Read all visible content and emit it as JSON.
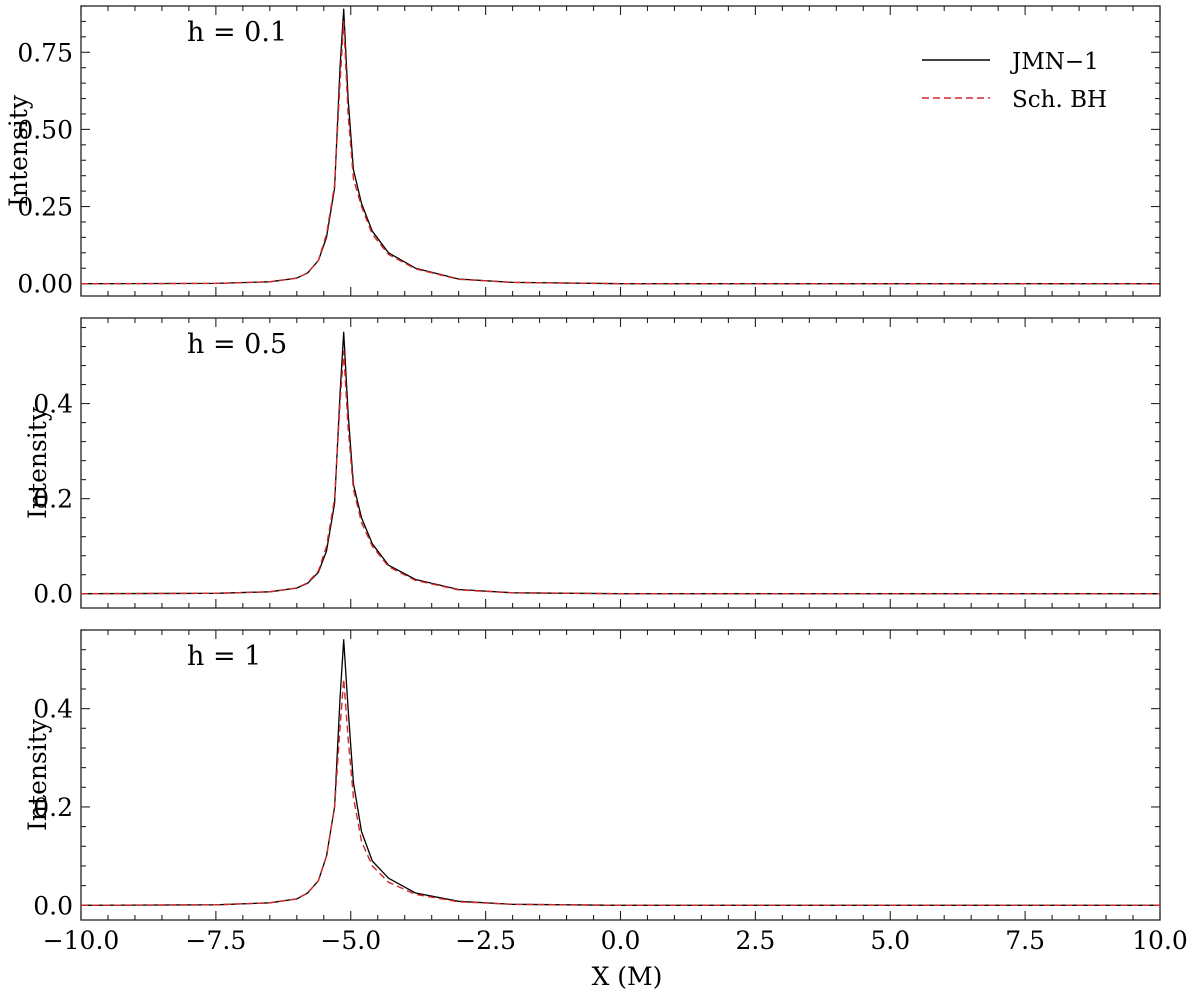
{
  "chart_data": {
    "type": "line",
    "xlabel": "X (M)",
    "xlim": [
      -10,
      10
    ],
    "x_ticks": [
      -10,
      -7.5,
      -5,
      -2.5,
      0,
      2.5,
      5,
      7.5,
      10
    ],
    "x_tick_labels": [
      "−10.0",
      "−7.5",
      "−5.0",
      "−2.5",
      "0.0",
      "2.5",
      "5.0",
      "7.5",
      "10.0"
    ],
    "legend": {
      "placement": "top-right",
      "entries": [
        {
          "name": "JMN−1",
          "color": "#000000",
          "dash": "solid"
        },
        {
          "name": "Sch. BH",
          "color": "#d62728",
          "dash": "dashed"
        }
      ]
    },
    "panels": [
      {
        "label": "h = 0.1",
        "ylabel": "Intensity",
        "ylim": [
          -0.04,
          0.9
        ],
        "y_ticks": [
          0,
          0.25,
          0.5,
          0.75
        ],
        "y_tick_labels": [
          "0.00",
          "0.25",
          "0.50",
          "0.75"
        ],
        "series": [
          {
            "name": "JMN−1",
            "x": [
              -10,
              -7.5,
              -6.5,
              -6.0,
              -5.8,
              -5.6,
              -5.45,
              -5.3,
              -5.2,
              -5.13,
              -5.05,
              -4.95,
              -4.8,
              -4.6,
              -4.3,
              -3.8,
              -3.0,
              -2.0,
              0,
              10
            ],
            "y": [
              0,
              0.001,
              0.006,
              0.018,
              0.035,
              0.075,
              0.15,
              0.31,
              0.7,
              0.89,
              0.6,
              0.37,
              0.26,
              0.17,
              0.1,
              0.05,
              0.015,
              0.004,
              0,
              0
            ]
          },
          {
            "name": "Sch. BH",
            "x": [
              -10,
              -7.5,
              -6.5,
              -6.0,
              -5.8,
              -5.6,
              -5.45,
              -5.3,
              -5.2,
              -5.13,
              -5.05,
              -4.95,
              -4.8,
              -4.6,
              -4.3,
              -3.8,
              -3.0,
              -2.0,
              0,
              10
            ],
            "y": [
              0,
              0.001,
              0.006,
              0.018,
              0.035,
              0.075,
              0.16,
              0.32,
              0.65,
              0.85,
              0.55,
              0.34,
              0.25,
              0.16,
              0.095,
              0.048,
              0.014,
              0.004,
              0,
              0
            ]
          }
        ]
      },
      {
        "label": "h = 0.5",
        "ylabel": "Intensity",
        "ylim": [
          -0.03,
          0.58
        ],
        "y_ticks": [
          0,
          0.2,
          0.4
        ],
        "y_tick_labels": [
          "0.0",
          "0.2",
          "0.4"
        ],
        "series": [
          {
            "name": "JMN−1",
            "x": [
              -10,
              -7.5,
              -6.5,
              -6.0,
              -5.8,
              -5.6,
              -5.45,
              -5.3,
              -5.2,
              -5.13,
              -5.05,
              -4.95,
              -4.8,
              -4.6,
              -4.3,
              -3.8,
              -3.0,
              -2.0,
              0,
              10
            ],
            "y": [
              0,
              0.001,
              0.004,
              0.012,
              0.022,
              0.045,
              0.09,
              0.19,
              0.42,
              0.55,
              0.38,
              0.23,
              0.16,
              0.105,
              0.06,
              0.03,
              0.009,
              0.002,
              0,
              0
            ]
          },
          {
            "name": "Sch. BH",
            "x": [
              -10,
              -7.5,
              -6.5,
              -6.0,
              -5.8,
              -5.6,
              -5.45,
              -5.3,
              -5.2,
              -5.13,
              -5.05,
              -4.95,
              -4.8,
              -4.6,
              -4.3,
              -3.8,
              -3.0,
              -2.0,
              0,
              10
            ],
            "y": [
              0,
              0.001,
              0.004,
              0.012,
              0.023,
              0.048,
              0.1,
              0.2,
              0.4,
              0.51,
              0.35,
              0.22,
              0.15,
              0.1,
              0.057,
              0.028,
              0.008,
              0.002,
              0,
              0
            ]
          }
        ]
      },
      {
        "label": "h = 1",
        "ylabel": "Intensity",
        "ylim": [
          -0.03,
          0.56
        ],
        "y_ticks": [
          0,
          0.2,
          0.4
        ],
        "y_tick_labels": [
          "0.0",
          "0.2",
          "0.4"
        ],
        "series": [
          {
            "name": "JMN−1",
            "x": [
              -10,
              -7.5,
              -6.5,
              -6.0,
              -5.8,
              -5.6,
              -5.45,
              -5.3,
              -5.2,
              -5.13,
              -5.05,
              -4.95,
              -4.8,
              -4.6,
              -4.3,
              -3.8,
              -3.0,
              -2.0,
              0,
              10
            ],
            "y": [
              0,
              0.001,
              0.005,
              0.013,
              0.025,
              0.05,
              0.1,
              0.2,
              0.42,
              0.54,
              0.4,
              0.25,
              0.15,
              0.09,
              0.055,
              0.025,
              0.008,
              0.002,
              0,
              0
            ]
          },
          {
            "name": "Sch. BH",
            "x": [
              -10,
              -7.5,
              -6.5,
              -6.0,
              -5.8,
              -5.6,
              -5.45,
              -5.3,
              -5.2,
              -5.13,
              -5.05,
              -4.95,
              -4.8,
              -4.6,
              -4.3,
              -3.8,
              -3.0,
              -2.0,
              0,
              10
            ],
            "y": [
              0,
              0.001,
              0.005,
              0.013,
              0.025,
              0.05,
              0.1,
              0.2,
              0.36,
              0.46,
              0.34,
              0.22,
              0.13,
              0.08,
              0.047,
              0.022,
              0.007,
              0.002,
              0,
              0
            ]
          }
        ]
      }
    ]
  }
}
